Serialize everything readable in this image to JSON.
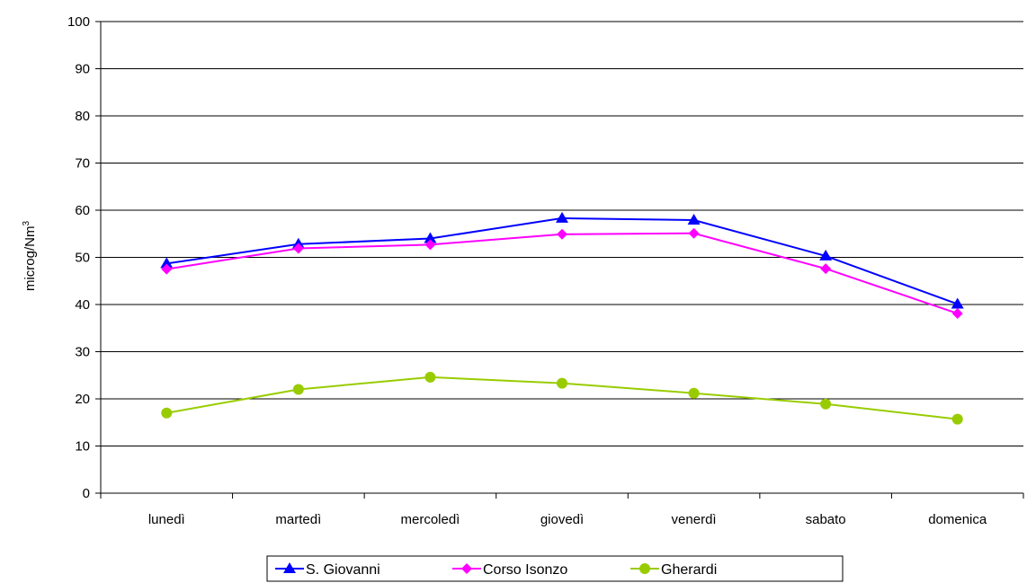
{
  "chart_data": {
    "type": "line",
    "title": "",
    "xlabel": "",
    "ylabel": "microg/Nm",
    "ylabel_sup": "3",
    "ylim": [
      0,
      100
    ],
    "yticks": [
      0,
      10,
      20,
      30,
      40,
      50,
      60,
      70,
      80,
      90,
      100
    ],
    "grid": true,
    "legend_position": "bottom",
    "categories": [
      "lunedì",
      "martedì",
      "mercoledì",
      "giovedì",
      "venerdì",
      "sabato",
      "domenica"
    ],
    "series": [
      {
        "name": "S. Giovanni",
        "color": "#0000ff",
        "marker": "triangle",
        "values": [
          48.7,
          52.8,
          54.0,
          58.3,
          57.9,
          50.3,
          40.1
        ]
      },
      {
        "name": "Corso Isonzo",
        "color": "#ff00ff",
        "marker": "diamond",
        "values": [
          47.5,
          51.9,
          52.7,
          54.9,
          55.1,
          47.6,
          38.1
        ]
      },
      {
        "name": "Gherardi",
        "color": "#99cc00",
        "marker": "circle",
        "values": [
          17.0,
          22.0,
          24.6,
          23.3,
          21.2,
          18.9,
          15.7
        ]
      }
    ]
  }
}
